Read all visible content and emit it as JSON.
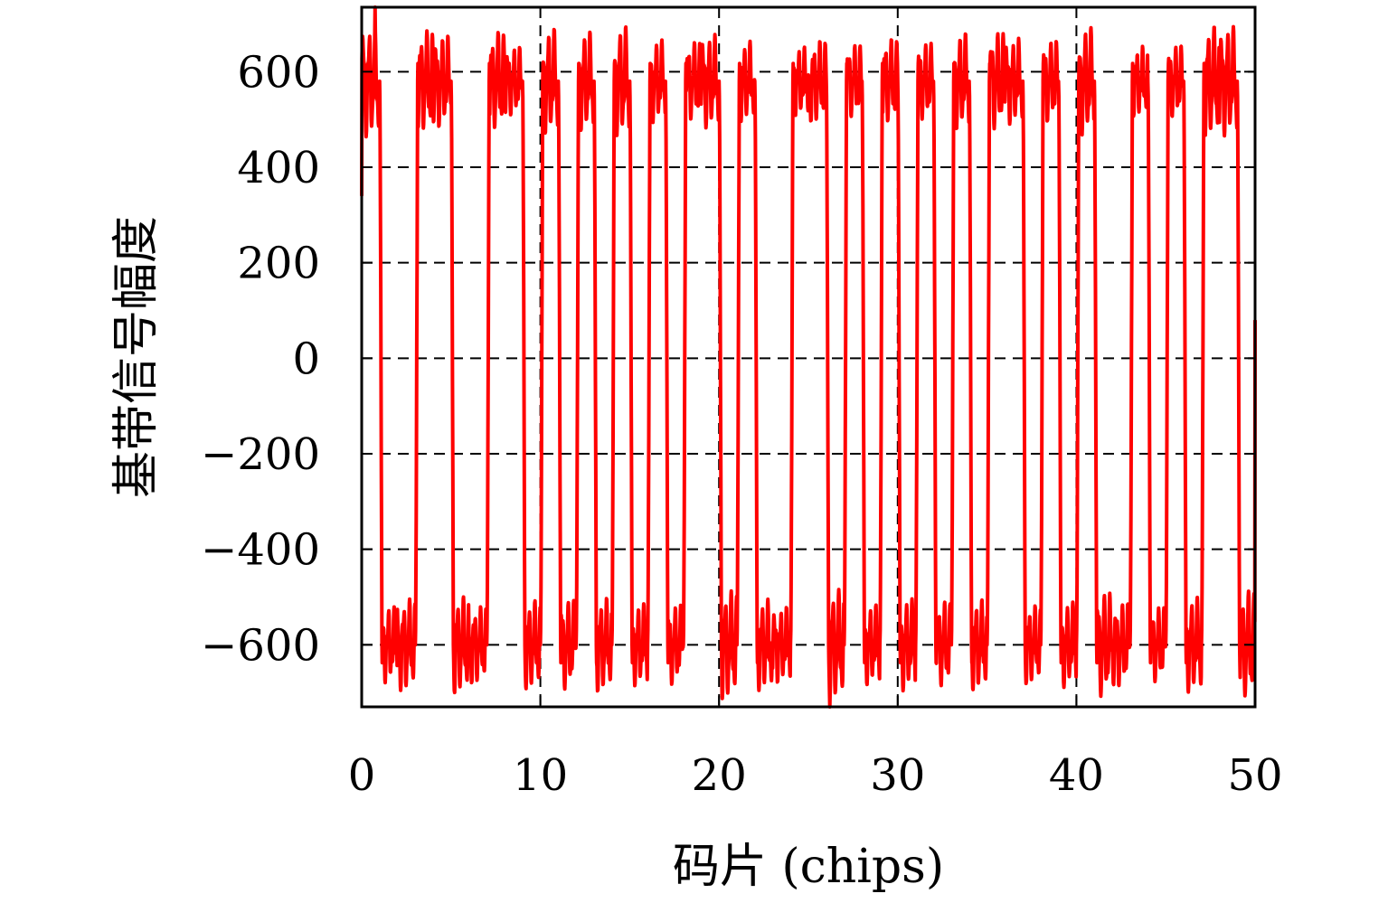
{
  "chart_data": {
    "type": "line",
    "title": "",
    "xlabel": "码片 (chips)",
    "ylabel": "基带信号幅度",
    "xlim": [
      0,
      50
    ],
    "ylim": [
      -730,
      735
    ],
    "x_ticks": [
      0,
      10,
      20,
      30,
      40,
      50
    ],
    "x_tick_labels": [
      "0",
      "10",
      "20",
      "30",
      "40",
      "50"
    ],
    "y_ticks": [
      600,
      400,
      200,
      0,
      -200,
      -400,
      -600
    ],
    "y_tick_labels": [
      "600",
      "400",
      "200",
      "0",
      "−200",
      "−400",
      "−600"
    ],
    "grid": true,
    "grid_style": "dashed",
    "legend": "none",
    "series": [
      {
        "color": "#ff0000",
        "chip_step": 1,
        "chips": [
          1,
          -1,
          -1,
          1,
          1,
          -1,
          -1,
          1,
          1,
          -1,
          1,
          -1,
          1,
          -1,
          1,
          -1,
          1,
          -1,
          1,
          1,
          -1,
          1,
          -1,
          -1,
          1,
          1,
          -1,
          1,
          -1,
          1,
          -1,
          1,
          -1,
          1,
          -1,
          1,
          1,
          -1,
          1,
          -1,
          1,
          -1,
          -1,
          1,
          -1,
          1,
          -1,
          1,
          1,
          -1
        ],
        "level_high": 580,
        "level_low": -600,
        "start_value": 340,
        "end_value": 80,
        "max_value": 735,
        "min_value": -730
      }
    ]
  }
}
